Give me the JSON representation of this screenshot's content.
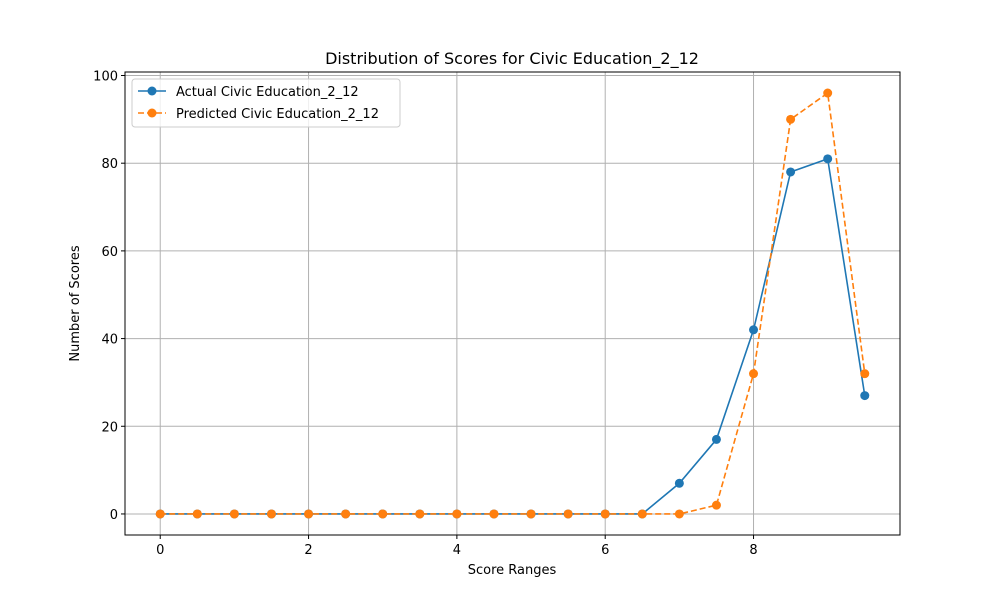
{
  "chart_data": {
    "type": "line",
    "title": "Distribution of Scores for Civic Education_2_12",
    "xlabel": "Score Ranges",
    "ylabel": "Number of Scores",
    "x": [
      0,
      0.5,
      1,
      1.5,
      2,
      2.5,
      3,
      3.5,
      4,
      4.5,
      5,
      5.5,
      6,
      6.5,
      7,
      7.5,
      8,
      8.5,
      9,
      9.5
    ],
    "series": [
      {
        "name": "Actual Civic Education_2_12",
        "values": [
          0,
          0,
          0,
          0,
          0,
          0,
          0,
          0,
          0,
          0,
          0,
          0,
          0,
          0,
          7,
          17,
          42,
          78,
          81,
          27
        ],
        "color": "#1f77b4",
        "line_style": "solid",
        "marker": "circle"
      },
      {
        "name": "Predicted Civic Education_2_12",
        "values": [
          0,
          0,
          0,
          0,
          0,
          0,
          0,
          0,
          0,
          0,
          0,
          0,
          0,
          0,
          0,
          2,
          32,
          90,
          96,
          32
        ],
        "color": "#ff7f0e",
        "line_style": "dashed",
        "marker": "circle"
      }
    ],
    "xlim": [
      -0.475,
      9.975
    ],
    "ylim": [
      -4.8,
      100.8
    ],
    "x_ticks": [
      "0",
      "2",
      "4",
      "6",
      "8"
    ],
    "y_ticks": [
      "0",
      "20",
      "40",
      "60",
      "80",
      "100"
    ],
    "grid": true,
    "legend_position": "top-left"
  }
}
